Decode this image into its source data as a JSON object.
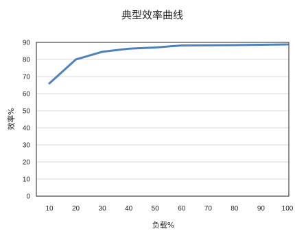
{
  "chart_data": {
    "type": "line",
    "title": "典型效率曲线",
    "xlabel": "负载%",
    "ylabel": "效率%",
    "x": [
      10,
      20,
      30,
      40,
      50,
      60,
      70,
      80,
      90,
      100
    ],
    "series": [
      {
        "values": [
          66,
          80,
          84.5,
          86.3,
          87,
          88.2,
          88.3,
          88.4,
          88.6,
          88.8
        ]
      }
    ],
    "xlim": [
      10,
      100
    ],
    "ylim": [
      0,
      90
    ],
    "yticks": [
      0,
      10,
      20,
      30,
      40,
      50,
      60,
      70,
      80,
      90
    ],
    "grid": true,
    "legend": "none",
    "colors": {
      "line": "#4f81bd",
      "grid": "#d9d9d9",
      "axis": "#222222"
    }
  }
}
